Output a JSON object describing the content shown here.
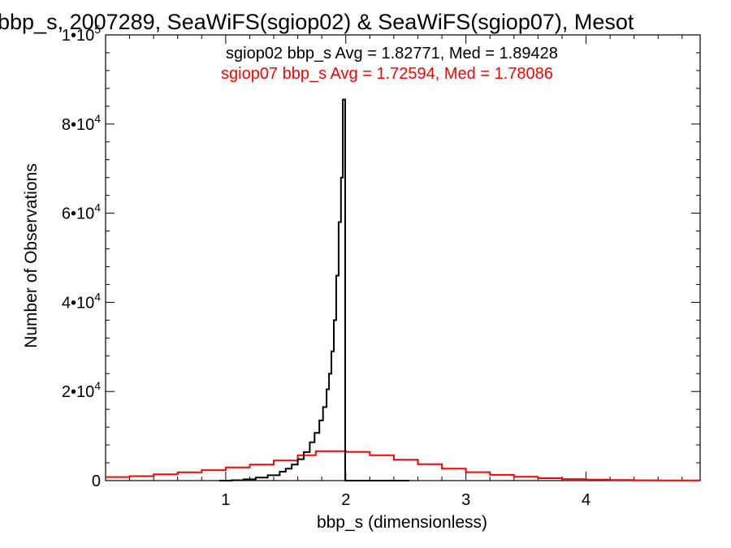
{
  "chart_data": {
    "type": "histogram",
    "title": "bbp_s, 2007289, SeaWiFS(sgiop02) & SeaWiFS(sgiop07), Mesot",
    "xlabel": "bbp_s (dimensionless)",
    "ylabel": "Number of Observations",
    "xlim": [
      0.0,
      4.95
    ],
    "ylim": [
      0,
      100000
    ],
    "x_ticks": [
      {
        "value": 1,
        "label": "1"
      },
      {
        "value": 2,
        "label": "2"
      },
      {
        "value": 3,
        "label": "3"
      },
      {
        "value": 4,
        "label": "4"
      }
    ],
    "y_ticks": [
      {
        "value": 0,
        "label": "0"
      },
      {
        "value": 20000,
        "label": "2•10",
        "exp": "4"
      },
      {
        "value": 40000,
        "label": "4•10",
        "exp": "4"
      },
      {
        "value": 60000,
        "label": "6•10",
        "exp": "4"
      },
      {
        "value": 80000,
        "label": "8•10",
        "exp": "4"
      },
      {
        "value": 100000,
        "label": "1•10",
        "exp": "5"
      }
    ],
    "grid": false,
    "series": [
      {
        "name": "sgiop02",
        "color": "#000000",
        "legend": "sgiop02 bbp_s Avg = 1.82771, Med = 1.89428",
        "points": [
          [
            0.95,
            0
          ],
          [
            1.05,
            100
          ],
          [
            1.15,
            300
          ],
          [
            1.25,
            700
          ],
          [
            1.35,
            1200
          ],
          [
            1.45,
            2000
          ],
          [
            1.5,
            2700
          ],
          [
            1.55,
            3600
          ],
          [
            1.6,
            4800
          ],
          [
            1.65,
            6400
          ],
          [
            1.7,
            8600
          ],
          [
            1.74,
            10700
          ],
          [
            1.78,
            13500
          ],
          [
            1.81,
            16500
          ],
          [
            1.84,
            20500
          ],
          [
            1.86,
            24000
          ],
          [
            1.88,
            29000
          ],
          [
            1.9,
            36000
          ],
          [
            1.92,
            46000
          ],
          [
            1.94,
            58000
          ],
          [
            1.96,
            68000
          ],
          [
            1.975,
            85500
          ],
          [
            1.985,
            85500
          ],
          [
            1.995,
            0
          ],
          [
            2.5,
            0
          ]
        ]
      },
      {
        "name": "sgiop07",
        "color": "#ff0000",
        "legend": "sgiop07 bbp_s Avg = 1.72594, Med = 1.78086",
        "points": [
          [
            0.0,
            800
          ],
          [
            0.2,
            1000
          ],
          [
            0.4,
            1400
          ],
          [
            0.6,
            1850
          ],
          [
            0.8,
            2350
          ],
          [
            1.0,
            2950
          ],
          [
            1.2,
            3600
          ],
          [
            1.4,
            4500
          ],
          [
            1.6,
            5700
          ],
          [
            1.75,
            6600
          ],
          [
            1.9,
            6600
          ],
          [
            2.0,
            6450
          ],
          [
            2.2,
            5700
          ],
          [
            2.4,
            4700
          ],
          [
            2.6,
            3700
          ],
          [
            2.8,
            2700
          ],
          [
            3.0,
            1900
          ],
          [
            3.2,
            1300
          ],
          [
            3.4,
            850
          ],
          [
            3.6,
            550
          ],
          [
            3.8,
            350
          ],
          [
            4.0,
            220
          ],
          [
            4.2,
            130
          ],
          [
            4.4,
            80
          ],
          [
            4.6,
            40
          ],
          [
            4.95,
            10
          ]
        ]
      }
    ]
  }
}
